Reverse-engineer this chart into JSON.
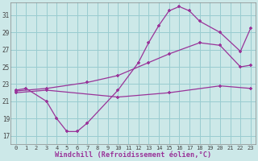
{
  "background_color": "#cce8e8",
  "grid_color": "#99ccd0",
  "line_color": "#993399",
  "marker": "+",
  "xlabel": "Windchill (Refroidissement éolien,°C)",
  "xlim": [
    -0.5,
    23.5
  ],
  "ylim": [
    16.0,
    32.5
  ],
  "yticks": [
    17,
    19,
    21,
    23,
    25,
    27,
    29,
    31
  ],
  "xticks": [
    0,
    1,
    2,
    3,
    4,
    5,
    6,
    7,
    8,
    9,
    10,
    11,
    12,
    13,
    14,
    15,
    16,
    17,
    18,
    19,
    20,
    21,
    22,
    23
  ],
  "line1_x": [
    0,
    3,
    10,
    15,
    20,
    23
  ],
  "line1_y": [
    22.0,
    22.3,
    21.5,
    22.0,
    22.8,
    22.5
  ],
  "line2_x": [
    0,
    3,
    7,
    10,
    13,
    15,
    18,
    20,
    22,
    23
  ],
  "line2_y": [
    22.2,
    22.5,
    23.2,
    24.0,
    25.5,
    26.5,
    27.8,
    27.5,
    25.0,
    25.2
  ],
  "line3_x": [
    0,
    1,
    3,
    4,
    5,
    6,
    7,
    10,
    12,
    13,
    14,
    15,
    16,
    17,
    18,
    20,
    22,
    23
  ],
  "line3_y": [
    22.3,
    22.5,
    21.0,
    19.0,
    17.5,
    17.5,
    18.5,
    22.3,
    25.5,
    27.8,
    29.8,
    31.5,
    32.0,
    31.5,
    30.3,
    29.0,
    26.8,
    29.5
  ]
}
